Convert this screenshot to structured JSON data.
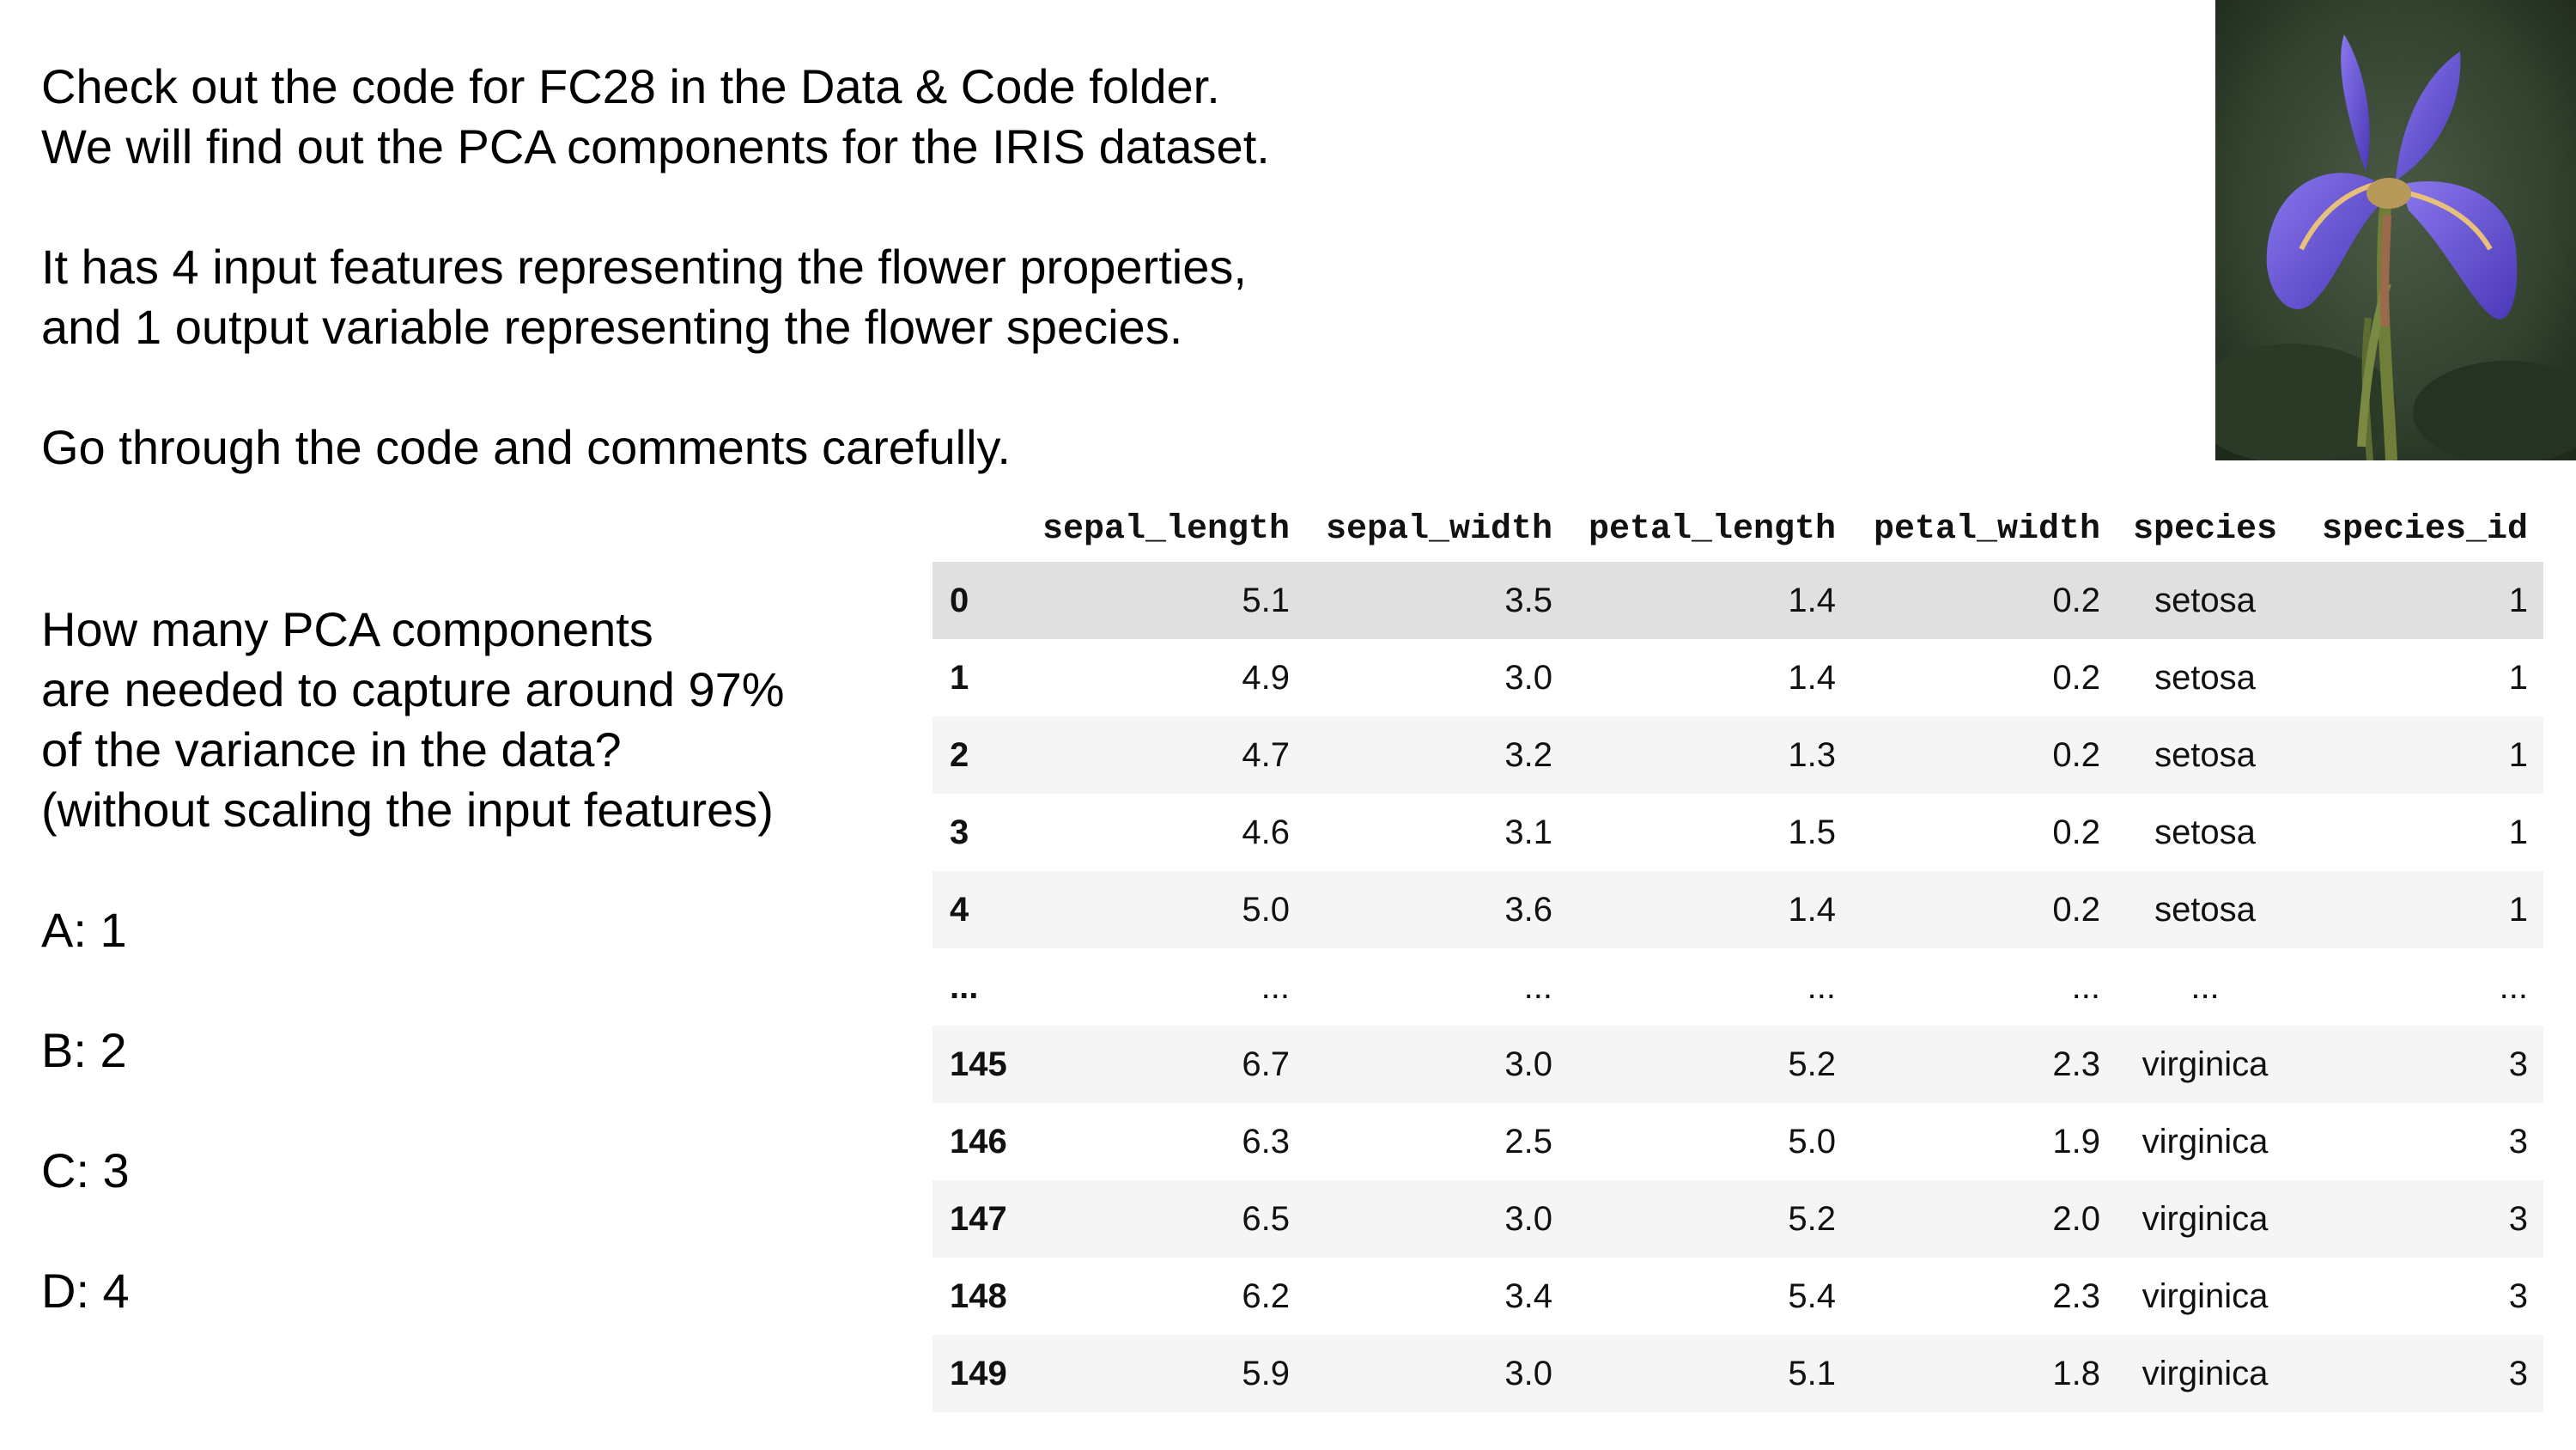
{
  "intro": {
    "line1": "Check out the code for FC28 in the Data & Code folder.",
    "line2": "We will find out the PCA components for the IRIS dataset."
  },
  "features": {
    "line1": "It has 4 input features representing the flower properties,",
    "line2": "and 1 output variable representing the flower species."
  },
  "instruction": "Go through the code and comments carefully.",
  "question": {
    "line1": "How many PCA components",
    "line2": "are needed to capture around 97%",
    "line3": "of the variance in the data?",
    "line4": "(without scaling the input features)"
  },
  "options": {
    "a": "A: 1",
    "b": "B: 2",
    "c": "C: 3",
    "d": "D: 4"
  },
  "image": {
    "icon": "iris-flower-photo",
    "colors": {
      "background": "#2f3d2c",
      "petal": "#6a55d6",
      "stem": "#6f7f3a"
    }
  },
  "table": {
    "columns": [
      "",
      "sepal_length",
      "sepal_width",
      "petal_length",
      "petal_width",
      "species",
      "species_id"
    ],
    "rows": [
      [
        "0",
        "5.1",
        "3.5",
        "1.4",
        "0.2",
        "setosa",
        "1"
      ],
      [
        "1",
        "4.9",
        "3.0",
        "1.4",
        "0.2",
        "setosa",
        "1"
      ],
      [
        "2",
        "4.7",
        "3.2",
        "1.3",
        "0.2",
        "setosa",
        "1"
      ],
      [
        "3",
        "4.6",
        "3.1",
        "1.5",
        "0.2",
        "setosa",
        "1"
      ],
      [
        "4",
        "5.0",
        "3.6",
        "1.4",
        "0.2",
        "setosa",
        "1"
      ],
      [
        "...",
        "...",
        "...",
        "...",
        "...",
        "...",
        "..."
      ],
      [
        "145",
        "6.7",
        "3.0",
        "5.2",
        "2.3",
        "virginica",
        "3"
      ],
      [
        "146",
        "6.3",
        "2.5",
        "5.0",
        "1.9",
        "virginica",
        "3"
      ],
      [
        "147",
        "6.5",
        "3.0",
        "5.2",
        "2.0",
        "virginica",
        "3"
      ],
      [
        "148",
        "6.2",
        "3.4",
        "5.4",
        "2.3",
        "virginica",
        "3"
      ],
      [
        "149",
        "5.9",
        "3.0",
        "5.1",
        "1.8",
        "virginica",
        "3"
      ]
    ]
  }
}
